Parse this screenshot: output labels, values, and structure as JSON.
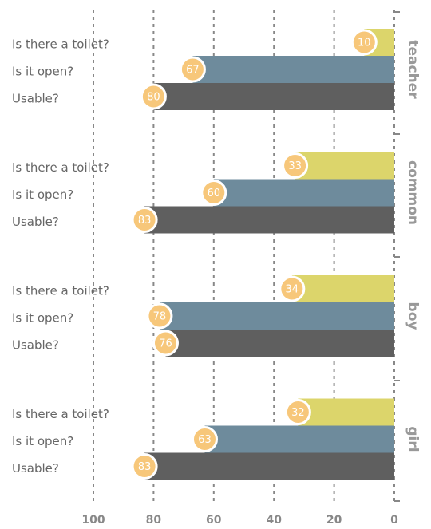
{
  "chart_data": {
    "type": "bar",
    "orientation": "horizontal",
    "x_reversed": true,
    "groups": [
      "teacher",
      "common",
      "boy",
      "girl"
    ],
    "series": [
      {
        "name": "Is there a toilet?",
        "color": "#dcd56b",
        "values": [
          10,
          33,
          34,
          32
        ]
      },
      {
        "name": "Is it open?",
        "color": "#6e8b9c",
        "values": [
          67,
          60,
          78,
          63
        ]
      },
      {
        "name": "Usable?",
        "color": "#5f5f5f",
        "values": [
          80,
          83,
          76,
          83
        ]
      }
    ],
    "label_color": "#f7c77a",
    "xlim": [
      0,
      100
    ],
    "xticks": [
      0,
      20,
      40,
      60,
      80,
      100
    ],
    "grid": true
  }
}
